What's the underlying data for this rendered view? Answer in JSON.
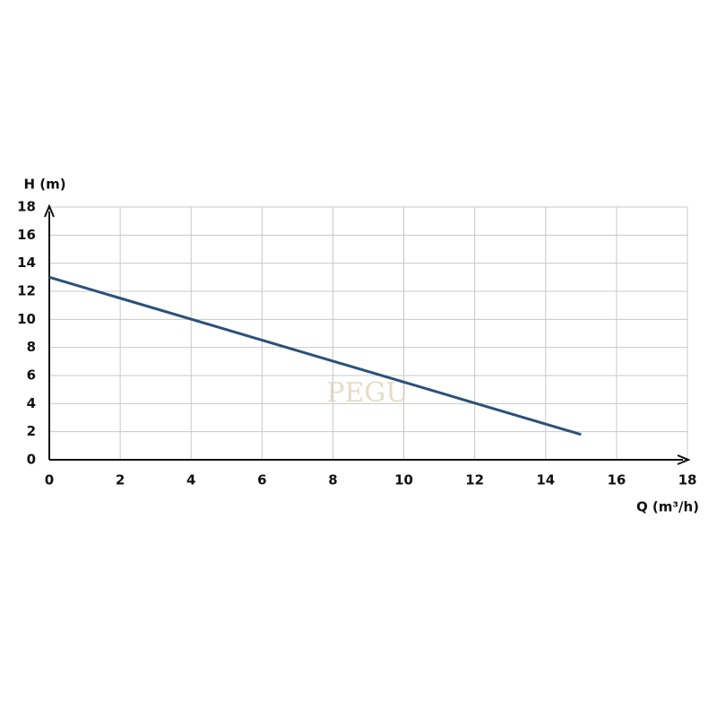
{
  "chart_data": {
    "type": "line",
    "x_label": "Q (m³/h)",
    "y_label": "H (m)",
    "watermark": "PEGU",
    "x": [
      0,
      15
    ],
    "series": [
      {
        "name": "H",
        "color": "#2b5179",
        "values": [
          13,
          1.8
        ]
      }
    ],
    "xlim": [
      0,
      18
    ],
    "xticks": [
      0,
      2,
      4,
      6,
      8,
      10,
      12,
      14,
      16,
      18
    ],
    "ylim": [
      0,
      18
    ],
    "yticks": [
      0,
      2,
      4,
      6,
      8,
      10,
      12,
      14,
      16,
      18
    ],
    "grid": true
  }
}
